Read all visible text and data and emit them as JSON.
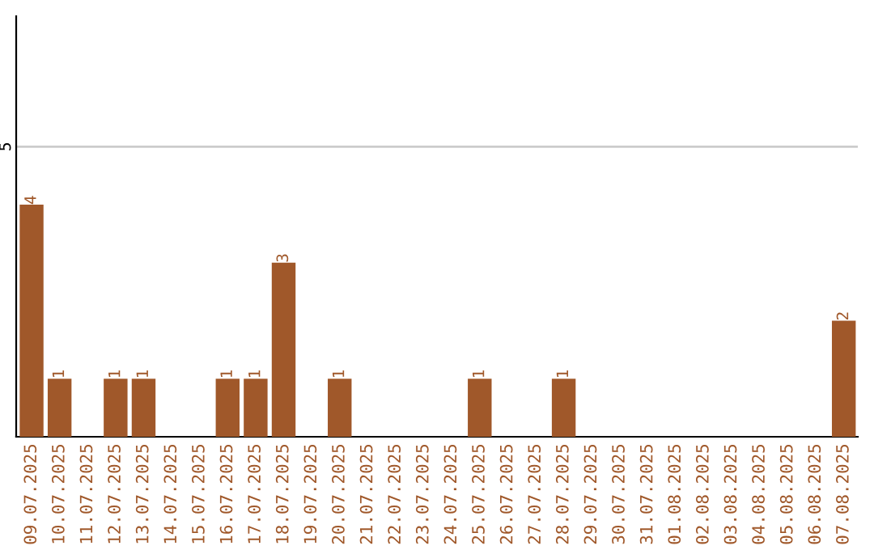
{
  "chart_data": {
    "type": "bar",
    "categories": [
      "09.07.2025",
      "10.07.2025",
      "11.07.2025",
      "12.07.2025",
      "13.07.2025",
      "14.07.2025",
      "15.07.2025",
      "16.07.2025",
      "17.07.2025",
      "18.07.2025",
      "19.07.2025",
      "20.07.2025",
      "21.07.2025",
      "22.07.2025",
      "23.07.2025",
      "24.07.2025",
      "25.07.2025",
      "26.07.2025",
      "27.07.2025",
      "28.07.2025",
      "29.07.2025",
      "30.07.2025",
      "31.07.2025",
      "01.08.2025",
      "02.08.2025",
      "03.08.2025",
      "04.08.2025",
      "05.08.2025",
      "06.08.2025",
      "07.08.2025"
    ],
    "values": [
      4,
      1,
      0,
      1,
      1,
      0,
      0,
      1,
      1,
      3,
      0,
      1,
      0,
      0,
      0,
      0,
      1,
      0,
      0,
      1,
      0,
      0,
      0,
      0,
      0,
      0,
      0,
      0,
      0,
      2
    ],
    "value_labels": [
      "4",
      "1",
      null,
      "1",
      "1",
      null,
      null,
      "1",
      "1",
      "3",
      null,
      "1",
      null,
      null,
      null,
      null,
      "1",
      null,
      null,
      "1",
      null,
      null,
      null,
      null,
      null,
      null,
      null,
      null,
      null,
      "2"
    ],
    "color": "#a0582a",
    "ylim": [
      0,
      7.25
    ],
    "yticks": [
      5
    ],
    "grid": "y"
  }
}
